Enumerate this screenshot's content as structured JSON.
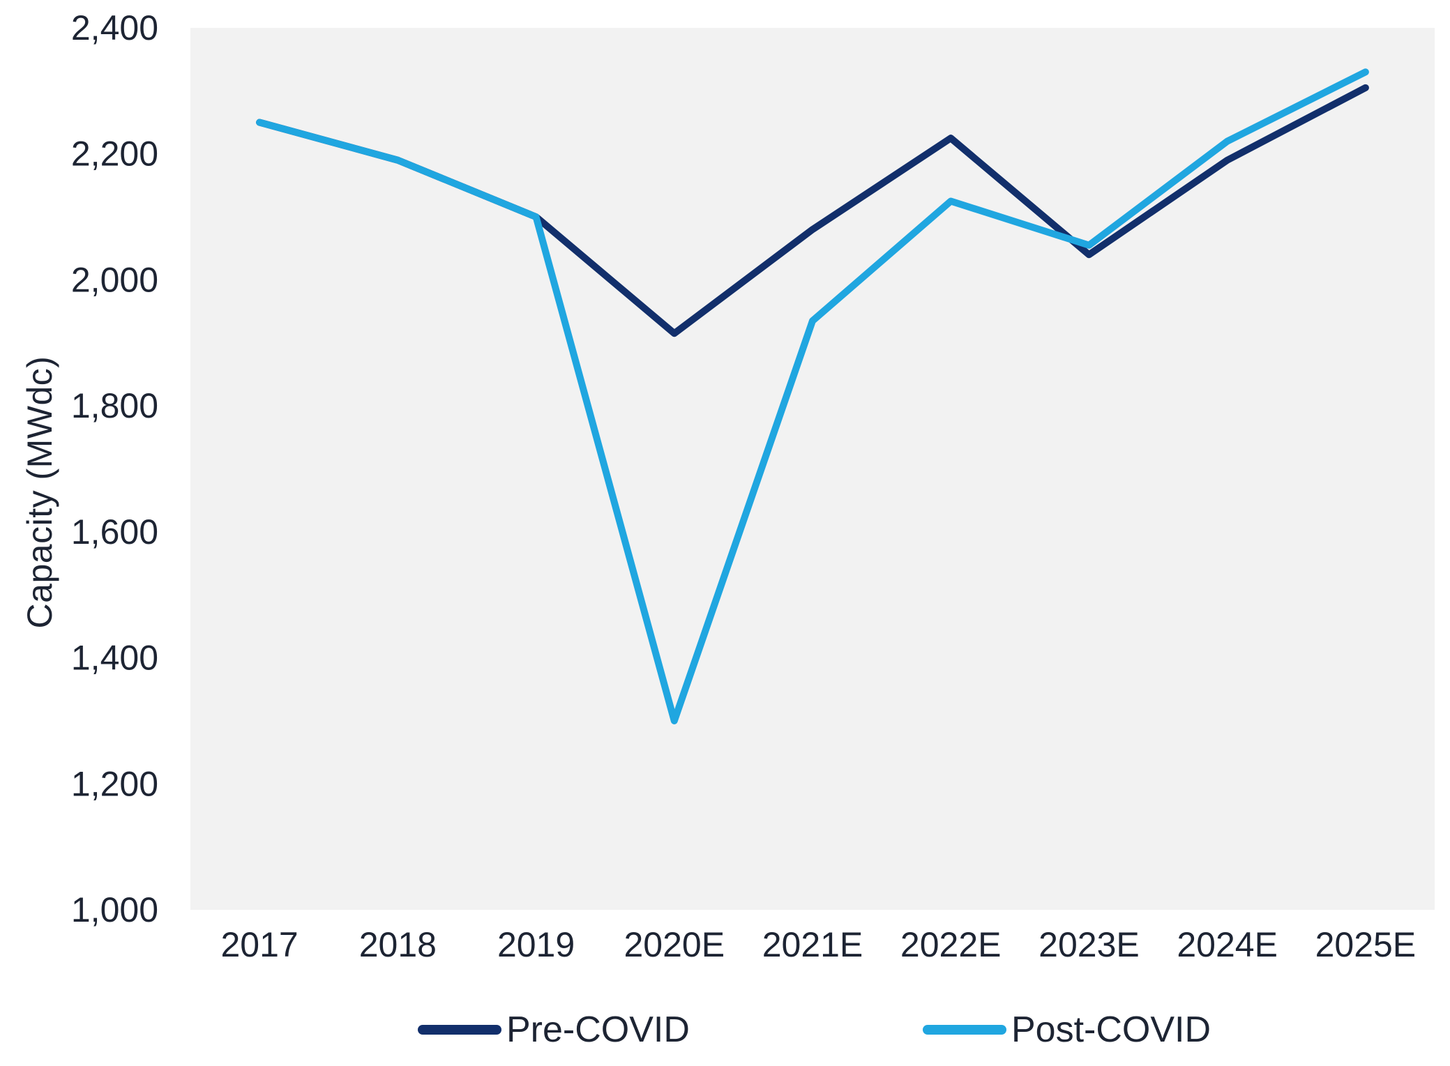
{
  "chart_data": {
    "type": "line",
    "title": "",
    "xlabel": "",
    "ylabel": "Capacity (MWdc)",
    "categories": [
      "2017",
      "2018",
      "2019",
      "2020E",
      "2021E",
      "2022E",
      "2023E",
      "2024E",
      "2025E"
    ],
    "series": [
      {
        "name": "Pre-COVID",
        "color": "#122F6B",
        "values": [
          2250,
          2190,
          2100,
          1915,
          2080,
          2225,
          2040,
          2190,
          2305
        ]
      },
      {
        "name": "Post-COVID",
        "color": "#20A6E0",
        "values": [
          2250,
          2190,
          2100,
          1300,
          1935,
          2125,
          2055,
          2220,
          2330
        ]
      }
    ],
    "ylim": [
      1000,
      2400
    ],
    "ytick_step": 200,
    "ytick_labels": [
      "1,000",
      "1,200",
      "1,400",
      "1,600",
      "1,800",
      "2,000",
      "2,200",
      "2,400"
    ],
    "grid": false,
    "axis_lines": false,
    "legend_position": "bottom",
    "plot_bg_color": "#F2F2F2",
    "text_color": "#1d2433",
    "line_width": 10
  }
}
